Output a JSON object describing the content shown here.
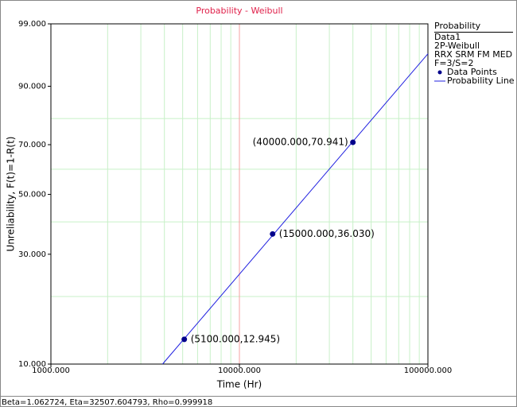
{
  "chart_data": {
    "type": "weibull-probability",
    "title": "Probability - Weibull",
    "xlabel": "Time (Hr)",
    "ylabel": "Unreliability, F(t)=1-R(t)",
    "xscale": "log",
    "yscale": "weibull",
    "xlim": [
      1000,
      100000
    ],
    "ylim": [
      10,
      99
    ],
    "xticks": [
      {
        "value": 1000,
        "label": "1000.000"
      },
      {
        "value": 10000,
        "label": "10000.000"
      },
      {
        "value": 100000,
        "label": "100000.000"
      }
    ],
    "yticks": [
      {
        "value": 10,
        "label": "10.000"
      },
      {
        "value": 30,
        "label": "30.000"
      },
      {
        "value": 50,
        "label": "50.000"
      },
      {
        "value": 70,
        "label": "70.000"
      },
      {
        "value": 90,
        "label": "90.000"
      },
      {
        "value": 99,
        "label": "99.000"
      }
    ],
    "minor_xticks": [
      2000,
      3000,
      4000,
      5000,
      6000,
      7000,
      8000,
      9000,
      20000,
      30000,
      40000,
      50000,
      60000,
      70000,
      80000,
      90000
    ],
    "minor_yticks": [
      20,
      40,
      60,
      80
    ],
    "grid": true,
    "grid_color": "#c8f0c8",
    "reference_x": 10000,
    "reference_color": "#f4a0a0",
    "series": [
      {
        "name": "Data Points",
        "color": "#00008b",
        "x": [
          5100,
          15000,
          40000
        ],
        "values": [
          12.945,
          36.03,
          70.941
        ],
        "value_labels": [
          "(5100.000,12.945)",
          "(15000.000,36.030)",
          "(40000.000,70.941)"
        ]
      },
      {
        "name": "Probability Line",
        "color": "#2020e0",
        "x": [
          3911,
          100000
        ],
        "values": [
          10,
          96.32
        ]
      }
    ],
    "legend": {
      "title": "Probability",
      "lines": [
        "Data1",
        "2P-Weibull",
        "RRX SRM FM MED",
        "F=3/S=2"
      ]
    },
    "status": "Beta=1.062724, Eta=32507.604793, Rho=0.999918"
  }
}
